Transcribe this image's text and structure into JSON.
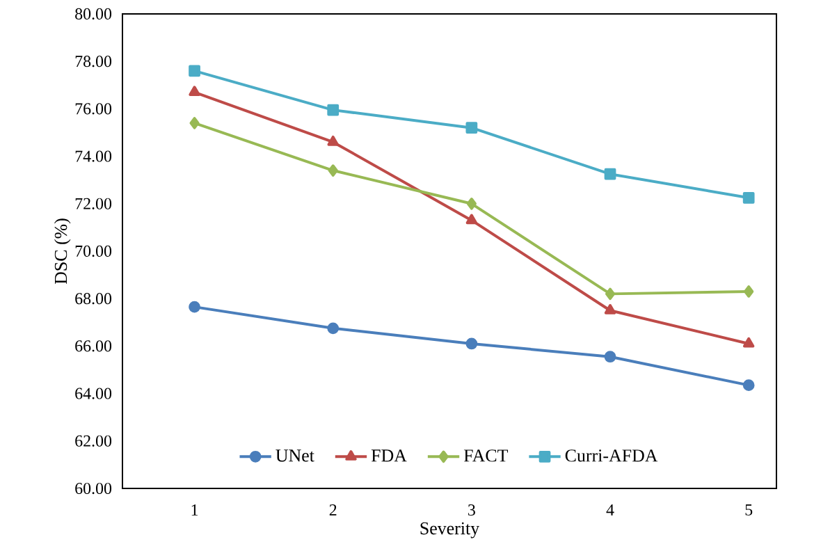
{
  "chart_data": {
    "type": "line",
    "xlabel": "Severity",
    "ylabel": "DSC (%)",
    "categories": [
      "1",
      "2",
      "3",
      "4",
      "5"
    ],
    "ylim": [
      60,
      80
    ],
    "yticks": [
      {
        "value": 60,
        "label": "60.00"
      },
      {
        "value": 62,
        "label": "62.00"
      },
      {
        "value": 64,
        "label": "64.00"
      },
      {
        "value": 66,
        "label": "66.00"
      },
      {
        "value": 68,
        "label": "68.00"
      },
      {
        "value": 70,
        "label": "70.00"
      },
      {
        "value": 72,
        "label": "72.00"
      },
      {
        "value": 74,
        "label": "74.00"
      },
      {
        "value": 76,
        "label": "76.00"
      },
      {
        "value": 78,
        "label": "78.00"
      },
      {
        "value": 80,
        "label": "80.00"
      }
    ],
    "grid": false,
    "legend": "bottom",
    "line_style": "solid",
    "series": [
      {
        "name": "UNet",
        "color": "#4a7ebb",
        "marker": "circle",
        "values": [
          67.65,
          66.75,
          66.1,
          65.55,
          64.35
        ]
      },
      {
        "name": "FDA",
        "color": "#be4b48",
        "marker": "triangle",
        "values": [
          76.7,
          74.6,
          71.3,
          67.5,
          66.1
        ]
      },
      {
        "name": "FACT",
        "color": "#98b954",
        "marker": "diamond",
        "values": [
          75.4,
          73.4,
          72.0,
          68.2,
          68.3
        ]
      },
      {
        "name": "Curri-AFDA",
        "color": "#4bacc6",
        "marker": "square",
        "values": [
          77.6,
          75.95,
          75.2,
          73.25,
          72.25
        ]
      }
    ]
  }
}
